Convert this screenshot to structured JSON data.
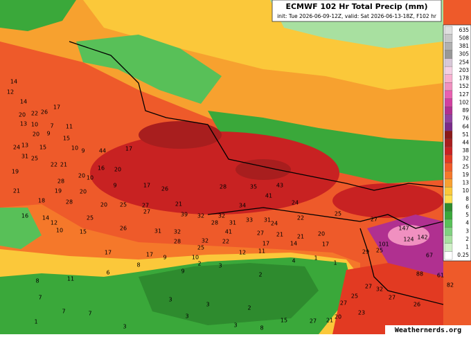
{
  "header": {
    "title": "ECMWF 102 Hr Total Precip (mm)",
    "subtitle": "init: Tue 2026-06-09-12Z, valid: Sat 2026-06-13-18Z, F102 hr"
  },
  "legend": {
    "levels": [
      635,
      508,
      381,
      305,
      254,
      203,
      178,
      152,
      127,
      102,
      89,
      76,
      64,
      51,
      44,
      38,
      32,
      25,
      19,
      13,
      10,
      8,
      6,
      5,
      4,
      3,
      2,
      1,
      0.25
    ],
    "colors": [
      "#e0e0e0",
      "#c8c8c8",
      "#b0b0b0",
      "#989898",
      "#d8c8d8",
      "#f4d0e4",
      "#f8b0d0",
      "#f090c0",
      "#e860b0",
      "#d040a0",
      "#b03090",
      "#9040a0",
      "#7a2a8a",
      "#8a1a1a",
      "#a81e1e",
      "#c82222",
      "#e23a22",
      "#f05a28",
      "#f5782a",
      "#f8a030",
      "#fbc83a",
      "#fde050",
      "#2e8b2e",
      "#3aa83a",
      "#58c058",
      "#80d080",
      "#a8e0a0",
      "#d0f0c8",
      "#ffffff"
    ]
  },
  "map_labels": [
    14,
    12,
    14,
    20,
    22,
    26,
    17,
    13,
    10,
    7,
    11,
    20,
    9,
    15,
    24,
    13,
    15,
    10,
    9,
    44,
    17,
    31,
    25,
    22,
    21,
    19,
    20,
    16,
    20,
    28,
    10,
    17,
    21,
    19,
    20,
    9,
    26,
    18,
    28,
    20,
    25,
    27,
    21,
    28,
    35,
    43,
    41,
    34,
    24,
    16,
    14,
    12,
    25,
    27,
    39,
    32,
    32,
    33,
    24,
    22,
    25,
    27,
    31,
    32,
    28,
    31,
    31,
    41,
    26,
    15,
    10,
    28,
    32,
    22,
    27,
    21,
    21,
    20,
    17,
    14,
    17,
    25,
    12,
    11,
    17,
    17,
    9,
    10,
    2,
    8,
    6,
    8,
    11,
    9,
    3,
    2,
    4,
    1,
    1,
    29,
    25,
    101,
    124,
    147,
    142,
    67,
    88,
    61,
    82,
    27,
    32,
    25,
    27,
    23,
    20,
    27,
    15,
    21,
    26,
    27,
    3,
    7,
    7,
    7,
    1,
    3,
    3,
    2,
    3,
    3,
    8
  ],
  "credit": "Weathernerds.org"
}
